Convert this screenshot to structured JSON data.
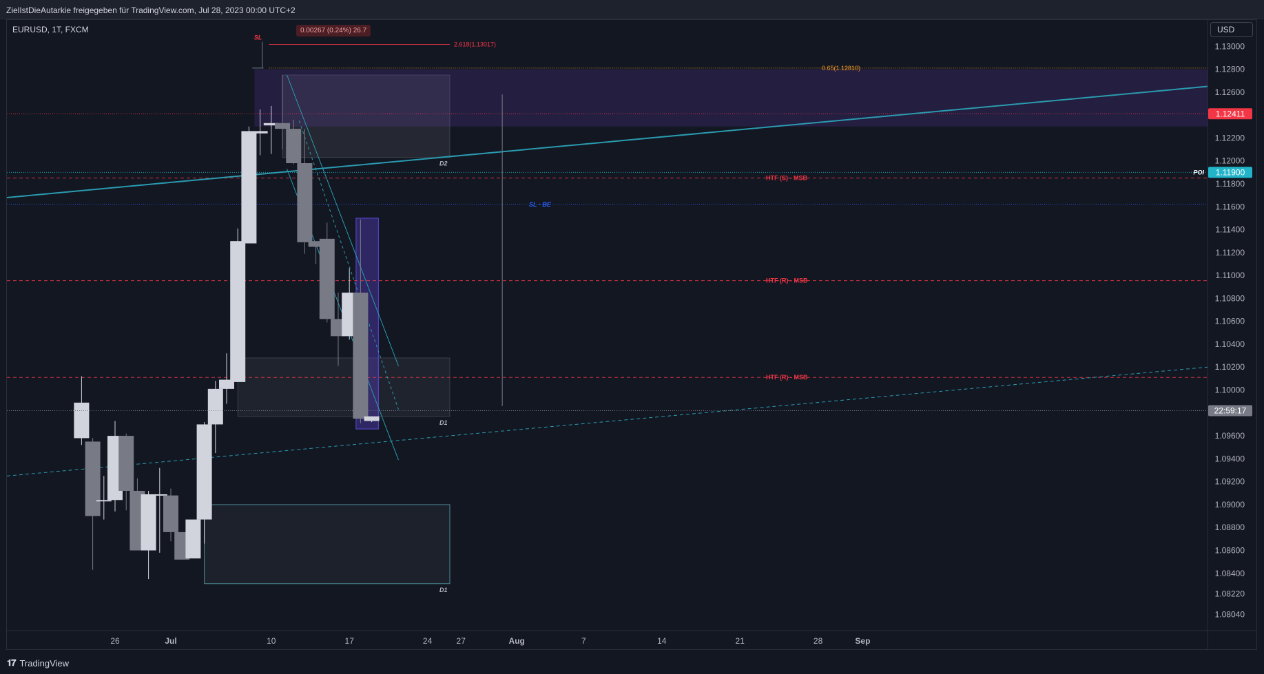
{
  "header": {
    "title": "ZielIstDieAutarkie freigegeben für TradingView.com, Jul 28, 2023 00:00 UTC+2"
  },
  "symbol": {
    "label": "EURUSD, 1T, FXCM"
  },
  "measure": {
    "label": "0.00267 (0.24%) 26.7"
  },
  "currency": {
    "label": "USD"
  },
  "footer": {
    "logo_text": "TradingView"
  },
  "colors": {
    "bg": "#131722",
    "bull": "#d1d4dc",
    "bear": "#787b86",
    "accent_red": "#f23645",
    "accent_cyan": "#22b5c9",
    "accent_orange": "#f59a23",
    "purple": "#4a3a9e"
  },
  "chart_data": {
    "type": "candlestick",
    "symbol": "EURUSD",
    "timeframe": "1T",
    "broker": "FXCM",
    "ylim": [
      1.079,
      1.1323
    ],
    "x_ticks": [
      {
        "label": "26",
        "day": -5
      },
      {
        "label": "Jul",
        "day": 0
      },
      {
        "label": "10",
        "day": 9
      },
      {
        "label": "17",
        "day": 16
      },
      {
        "label": "24",
        "day": 23
      },
      {
        "label": "27",
        "day": 26
      },
      {
        "label": "Aug",
        "day": 31
      },
      {
        "label": "7",
        "day": 37
      },
      {
        "label": "14",
        "day": 44
      },
      {
        "label": "21",
        "day": 51
      },
      {
        "label": "28",
        "day": 58
      },
      {
        "label": "Sep",
        "day": 62
      }
    ],
    "y_ticks": [
      "1.13000",
      "1.12800",
      "1.12600",
      "1.12400",
      "1.12200",
      "1.12000",
      "1.11800",
      "1.11600",
      "1.11400",
      "1.11200",
      "1.11000",
      "1.10800",
      "1.10600",
      "1.10400",
      "1.10200",
      "1.10000",
      "1.09600",
      "1.09400",
      "1.09200",
      "1.09000",
      "1.08800",
      "1.08600",
      "1.08400",
      "1.08220",
      "1.08040"
    ],
    "price_labels": [
      {
        "text": "1.12411",
        "value": 1.12411,
        "color": "#f23645"
      },
      {
        "text": "1.11900",
        "value": 1.119,
        "color": "#22b5c9"
      },
      {
        "text": "22:59:17",
        "value": 1.0982,
        "color": "#787b86"
      }
    ],
    "candles": [
      {
        "day": -8,
        "o": 1.0958,
        "h": 1.1012,
        "l": 1.0952,
        "c": 1.0989
      },
      {
        "day": -7,
        "o": 1.0955,
        "h": 1.0958,
        "l": 1.0843,
        "c": 1.089
      },
      {
        "day": -6,
        "o": 1.0904,
        "h": 1.0925,
        "l": 1.0887,
        "c": 1.0904
      },
      {
        "day": -5,
        "o": 1.0904,
        "h": 1.0973,
        "l": 1.0894,
        "c": 1.096
      },
      {
        "day": -4,
        "o": 1.096,
        "h": 1.0962,
        "l": 1.0895,
        "c": 1.0912
      },
      {
        "day": -3,
        "o": 1.0912,
        "h": 1.0923,
        "l": 1.086,
        "c": 1.086
      },
      {
        "day": -2,
        "o": 1.086,
        "h": 1.0912,
        "l": 1.0835,
        "c": 1.0909
      },
      {
        "day": -1,
        "o": 1.0908,
        "h": 1.0932,
        "l": 1.0858,
        "c": 1.0909
      },
      {
        "day": 0,
        "o": 1.0908,
        "h": 1.0914,
        "l": 1.0868,
        "c": 1.0876
      },
      {
        "day": 1,
        "o": 1.0876,
        "h": 1.0874,
        "l": 1.0852,
        "c": 1.0852
      },
      {
        "day": 2,
        "o": 1.0853,
        "h": 1.0887,
        "l": 1.0853,
        "c": 1.0887
      },
      {
        "day": 3,
        "o": 1.0887,
        "h": 1.0972,
        "l": 1.0866,
        "c": 1.097
      },
      {
        "day": 4,
        "o": 1.097,
        "h": 1.1008,
        "l": 1.0945,
        "c": 1.1001
      },
      {
        "day": 5,
        "o": 1.1001,
        "h": 1.1032,
        "l": 1.0988,
        "c": 1.1009
      },
      {
        "day": 6,
        "o": 1.1007,
        "h": 1.1141,
        "l": 1.1007,
        "c": 1.113
      },
      {
        "day": 7,
        "o": 1.1128,
        "h": 1.123,
        "l": 1.1128,
        "c": 1.1226
      },
      {
        "day": 8,
        "o": 1.1224,
        "h": 1.1245,
        "l": 1.1205,
        "c": 1.1226
      },
      {
        "day": 9,
        "o": 1.1231,
        "h": 1.1248,
        "l": 1.1206,
        "c": 1.1233
      },
      {
        "day": 10,
        "o": 1.1233,
        "h": 1.1275,
        "l": 1.121,
        "c": 1.1228
      },
      {
        "day": 11,
        "o": 1.1228,
        "h": 1.1236,
        "l": 1.1197,
        "c": 1.1198
      },
      {
        "day": 12,
        "o": 1.1198,
        "h": 1.1228,
        "l": 1.1119,
        "c": 1.1129
      },
      {
        "day": 13,
        "o": 1.113,
        "h": 1.1129,
        "l": 1.111,
        "c": 1.1125
      },
      {
        "day": 14,
        "o": 1.1132,
        "h": 1.1146,
        "l": 1.1059,
        "c": 1.1062
      },
      {
        "day": 15,
        "o": 1.1062,
        "h": 1.1085,
        "l": 1.1021,
        "c": 1.1047
      },
      {
        "day": 16,
        "o": 1.1047,
        "h": 1.1106,
        "l": 1.1044,
        "c": 1.1085
      },
      {
        "day": 17,
        "o": 1.1085,
        "h": 1.1149,
        "l": 1.0971,
        "c": 1.0975
      },
      {
        "day": 18,
        "o": 1.0973,
        "h": 1.0977,
        "l": 1.0972,
        "c": 1.0977
      }
    ],
    "horizontal_lines": [
      {
        "label": "2.618(1.13017)",
        "value": 1.13017,
        "color": "#f23645",
        "style": "solid"
      },
      {
        "label": "0.65(1.12810)",
        "value": 1.1281,
        "color": "#f59a23",
        "style": "dotted"
      },
      {
        "label": "HTF (S) - MSB",
        "value": 1.1185,
        "color": "#f23645",
        "style": "dashed"
      },
      {
        "label": "SL - BE",
        "value": 1.1162,
        "color": "#2962ff",
        "style": "dotted"
      },
      {
        "label": "HTF (R) - MSB",
        "value": 1.10955,
        "color": "#f23645",
        "style": "dashed"
      },
      {
        "label": "HTF (R) - MSB",
        "value": 1.1011,
        "color": "#f23645",
        "style": "dashed"
      },
      {
        "label": "POI",
        "value": 1.119,
        "color": "#22b5c9",
        "style": "dotted"
      },
      {
        "label": "",
        "value": 1.12411,
        "color": "#f23645",
        "style": "dotted"
      }
    ],
    "zones": [
      {
        "label": "D2",
        "day_from": 10,
        "day_to": 25,
        "top": 1.1275,
        "bottom": 1.1203
      },
      {
        "label": "D1",
        "day_from": 6,
        "day_to": 25,
        "top": 1.1028,
        "bottom": 1.0977
      },
      {
        "label": "D1",
        "day_from": 3,
        "day_to": 25,
        "top": 1.09,
        "bottom": 1.0831
      }
    ],
    "annotations": [
      {
        "text": "SL",
        "color": "#f23645"
      }
    ]
  }
}
